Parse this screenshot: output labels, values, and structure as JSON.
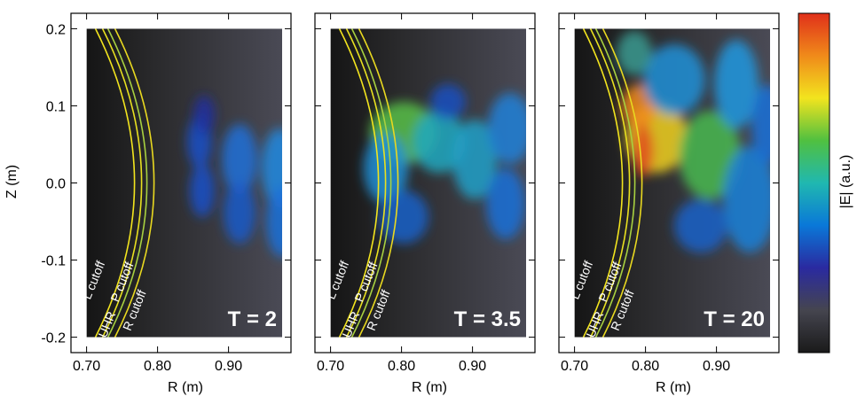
{
  "chart_data": [
    {
      "type": "heatmap",
      "title": "T = 2",
      "xlabel": "R (m)",
      "ylabel": "Z (m)",
      "xlim": [
        0.678,
        0.988
      ],
      "ylim": [
        -0.22,
        0.22
      ],
      "xticks": [
        {
          "value": 0.7,
          "label": "0.70"
        },
        {
          "value": 0.8,
          "label": "0.80"
        },
        {
          "value": 0.9,
          "label": "0.90"
        }
      ],
      "yticks": [
        {
          "value": 0.2,
          "label": "0.2"
        },
        {
          "value": 0.1,
          "label": "0.1"
        },
        {
          "value": 0,
          "label": "0.0"
        },
        {
          "value": -0.1,
          "label": "-0.1"
        },
        {
          "value": -0.2,
          "label": "-0.2"
        }
      ],
      "annotations": [
        "L cutoff",
        "UHR",
        "P cutoff",
        "R cutoff"
      ]
    },
    {
      "type": "heatmap",
      "title": "T = 3.5",
      "xlabel": "R (m)",
      "xlim": [
        0.678,
        0.988
      ],
      "ylim": [
        -0.22,
        0.22
      ],
      "xticks": [
        {
          "value": 0.7,
          "label": "0.70"
        },
        {
          "value": 0.8,
          "label": "0.80"
        },
        {
          "value": 0.9,
          "label": "0.90"
        }
      ],
      "yticks": [
        0.2,
        0.1,
        0,
        -0.1,
        -0.2
      ],
      "annotations": [
        "L cutoff",
        "UHR",
        "P cutoff",
        "R cutoff"
      ]
    },
    {
      "type": "heatmap",
      "title": "T = 20",
      "xlabel": "R (m)",
      "xlim": [
        0.678,
        0.988
      ],
      "ylim": [
        -0.22,
        0.22
      ],
      "xticks": [
        {
          "value": 0.7,
          "label": "0.70"
        },
        {
          "value": 0.8,
          "label": "0.80"
        },
        {
          "value": 0.9,
          "label": "0.90"
        }
      ],
      "yticks": [
        0.2,
        0.1,
        0,
        -0.1,
        -0.2
      ],
      "annotations": [
        "L cutoff",
        "UHR",
        "P cutoff",
        "R cutoff"
      ]
    }
  ],
  "colorbar": {
    "label": "|E| (a.u.)",
    "colors": [
      "#1a1a1a",
      "#45454f",
      "#2a2aa0",
      "#0a78d8",
      "#20b8b0",
      "#50c040",
      "#f2e41e",
      "#f08a1a",
      "#e0301a"
    ]
  }
}
